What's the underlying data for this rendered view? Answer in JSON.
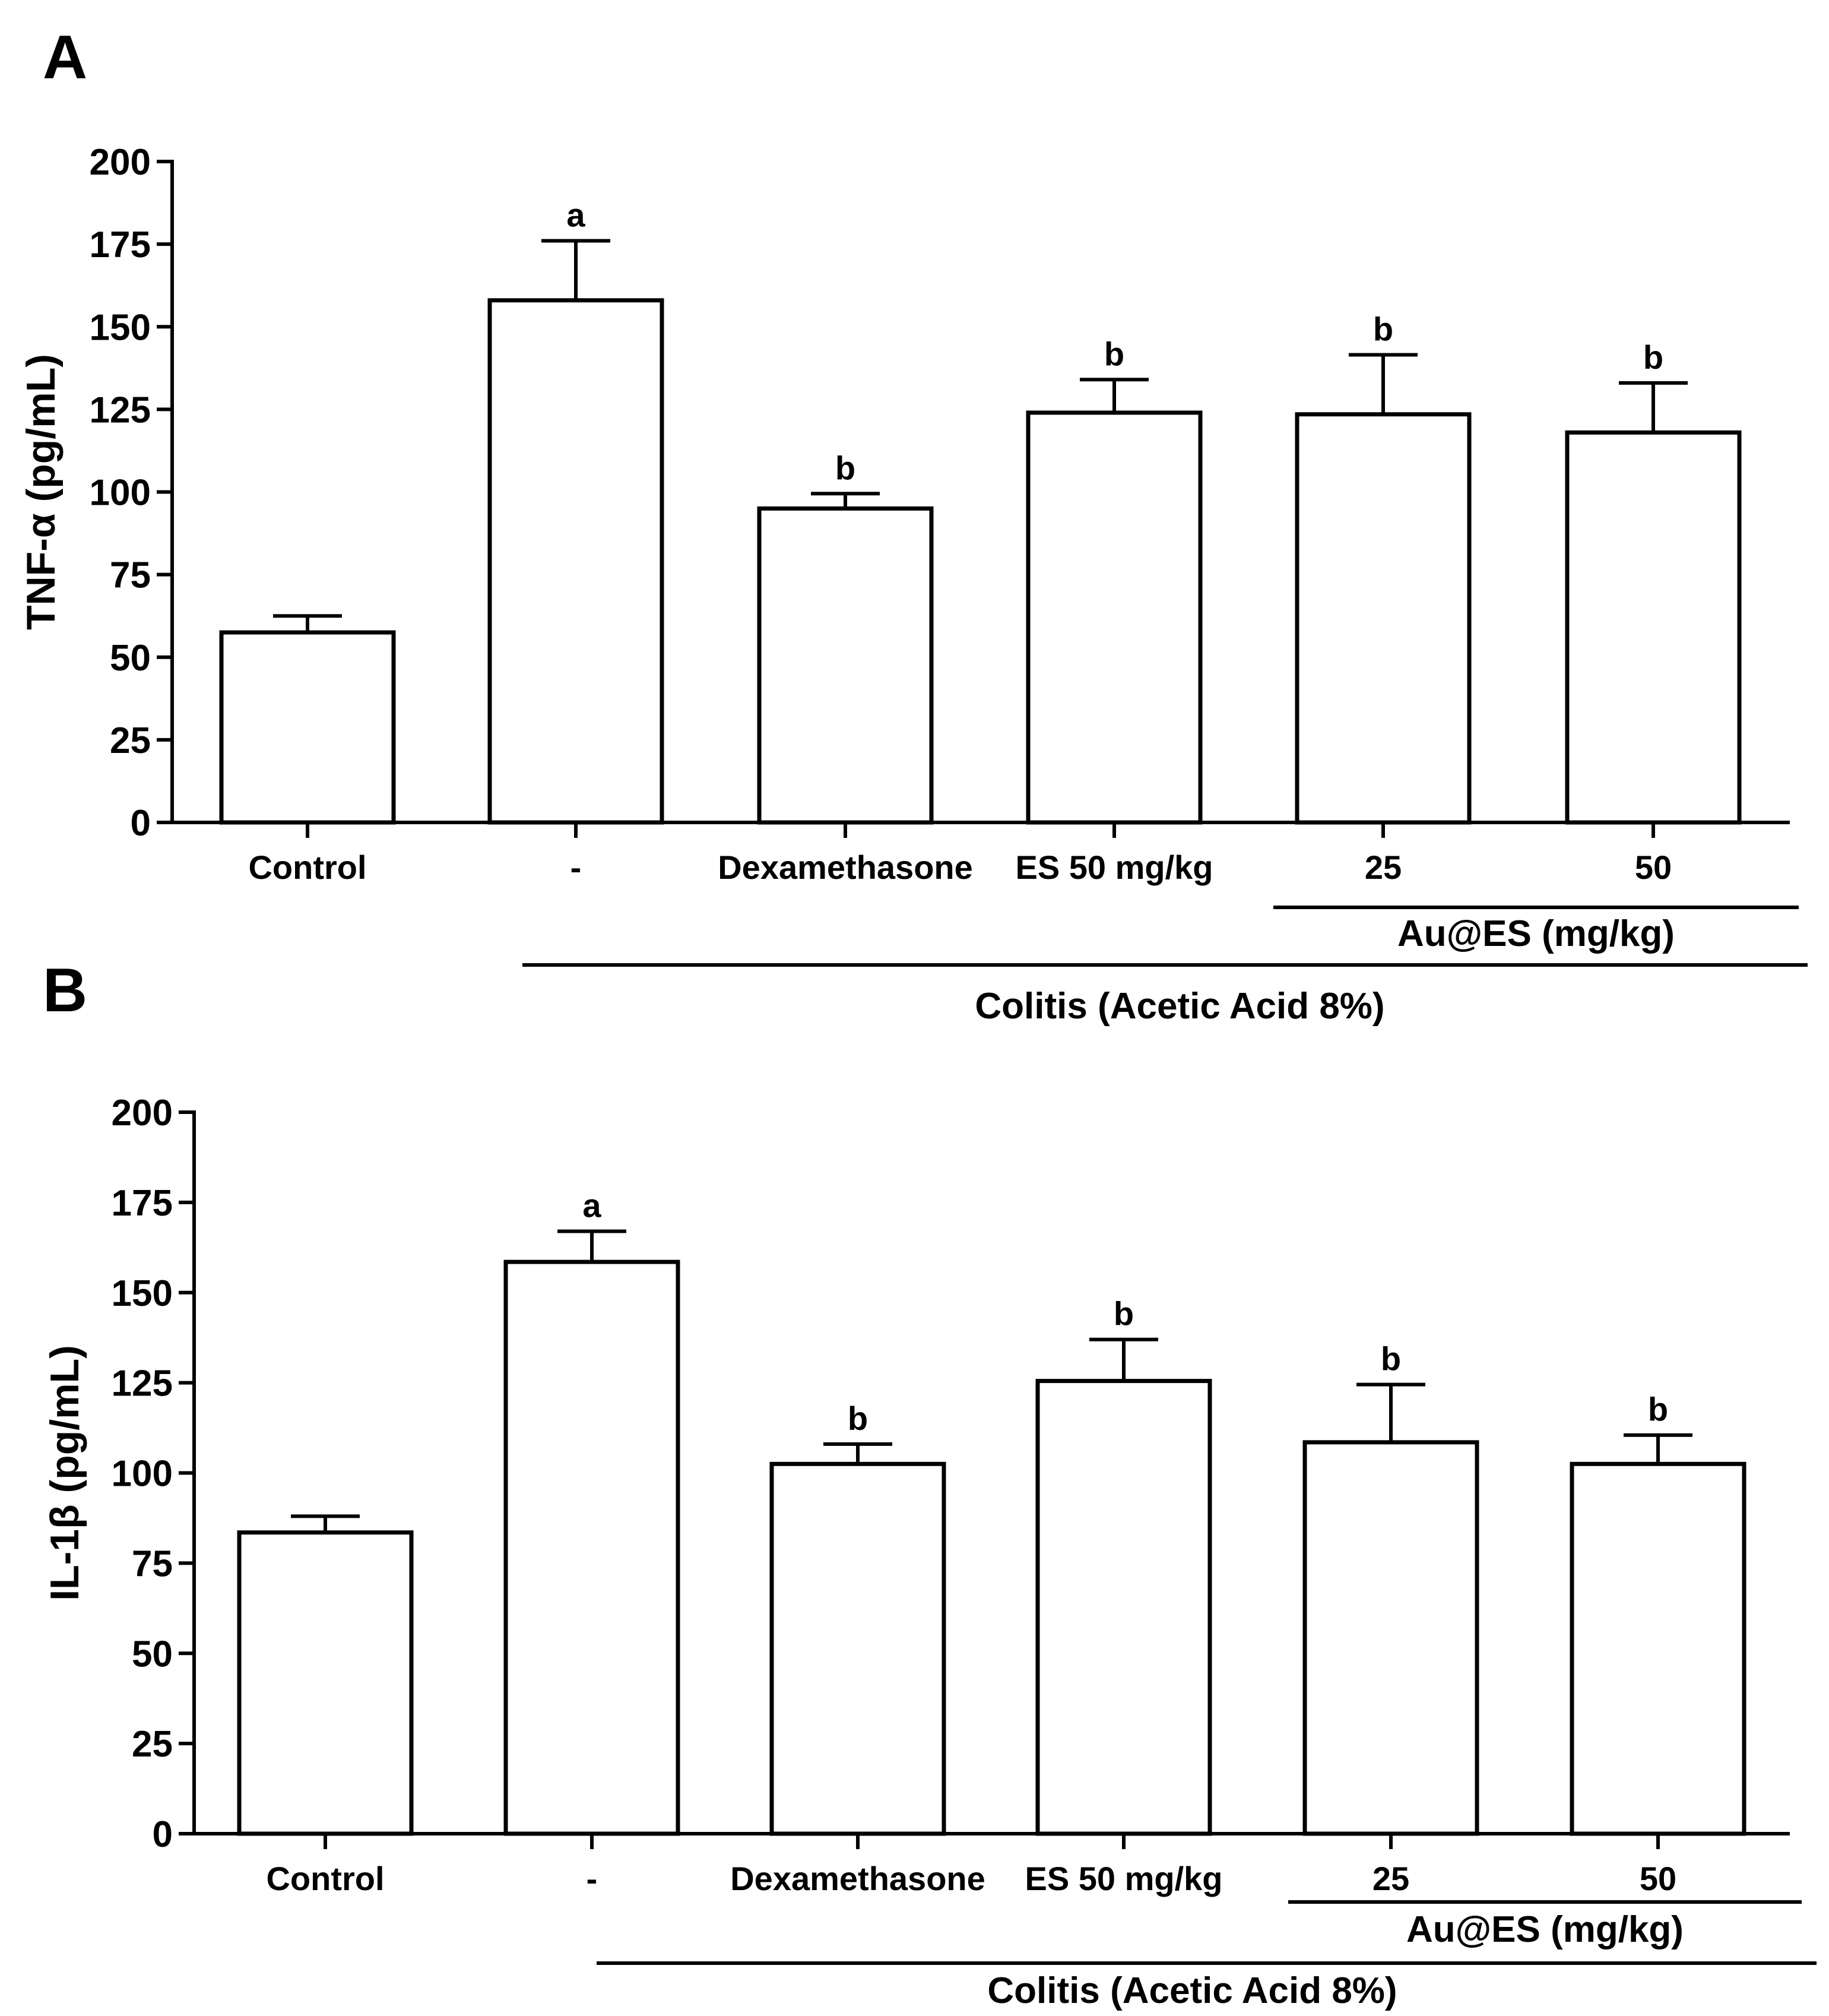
{
  "chart_data": [
    {
      "type": "bar",
      "panel_label": "A",
      "title": "",
      "xlabel": "",
      "ylabel": "TNF-α (pg/mL)",
      "ylim": [
        0,
        200
      ],
      "yticks": [
        "0",
        "25",
        "50",
        "75",
        "100",
        "125",
        "150",
        "175",
        "200"
      ],
      "categories": [
        "Control",
        "-",
        "Dexamethasone",
        "ES 50 mg/kg",
        "25",
        "50"
      ],
      "values": [
        57.5,
        158,
        95,
        124,
        123.5,
        118
      ],
      "errors": [
        5,
        18,
        4.5,
        10,
        18,
        15
      ],
      "significance": [
        "",
        "a",
        "b",
        "b",
        "b",
        "b"
      ],
      "groups": [
        {
          "label": "Au@ES (mg/kg)",
          "span": [
            4,
            5
          ]
        },
        {
          "label": "Colitis (Acetic Acid 8%)",
          "span": [
            1,
            5
          ]
        }
      ]
    },
    {
      "type": "bar",
      "panel_label": "B",
      "title": "",
      "xlabel": "",
      "ylabel": "IL-1β (pg/mL)",
      "ylim": [
        0,
        200
      ],
      "yticks": [
        "0",
        "25",
        "50",
        "75",
        "100",
        "125",
        "150",
        "175",
        "200"
      ],
      "categories": [
        "Control",
        "-",
        "Dexamethasone",
        "ES 50 mg/kg",
        "25",
        "50"
      ],
      "values": [
        83.5,
        158.5,
        102.5,
        125.5,
        108.5,
        102.5
      ],
      "errors": [
        4.5,
        8.5,
        5.5,
        11.5,
        16,
        8
      ],
      "significance": [
        "",
        "a",
        "b",
        "b",
        "b",
        "b"
      ],
      "groups": [
        {
          "label": "Au@ES (mg/kg)",
          "span": [
            4,
            5
          ]
        },
        {
          "label": "Colitis (Acetic Acid 8%)",
          "span": [
            1,
            5
          ]
        }
      ]
    }
  ]
}
